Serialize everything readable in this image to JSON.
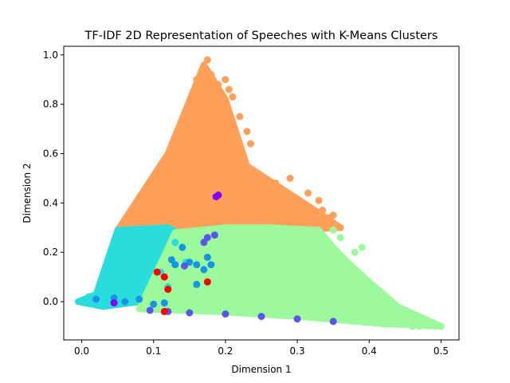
{
  "chart_data": {
    "type": "scatter",
    "title": "TF-IDF 2D Representation of Speeches with K-Means Clusters",
    "xlabel": "Dimension 1",
    "ylabel": "Dimension 2",
    "xlim": [
      -0.025,
      0.525
    ],
    "ylim": [
      -0.155,
      1.035
    ],
    "xticks": [
      0.0,
      0.1,
      0.2,
      0.3,
      0.4,
      0.5
    ],
    "xtick_labels": [
      "0.0",
      "0.1",
      "0.2",
      "0.3",
      "0.4",
      "0.5"
    ],
    "yticks": [
      0.0,
      0.2,
      0.4,
      0.6,
      0.8,
      1.0
    ],
    "ytick_labels": [
      "0.0",
      "0.2",
      "0.4",
      "0.6",
      "0.8",
      "1.0"
    ],
    "grid": false,
    "legend": "none",
    "colormap": "rainbow",
    "series": [
      {
        "color": "#ffa05a",
        "region": [
          [
            0.05,
            0.29
          ],
          [
            0.12,
            0.6
          ],
          [
            0.17,
            0.96
          ],
          [
            0.2,
            0.82
          ],
          [
            0.23,
            0.55
          ],
          [
            0.33,
            0.36
          ],
          [
            0.36,
            0.3
          ],
          [
            0.3,
            0.29
          ],
          [
            0.2,
            0.27
          ],
          [
            0.12,
            0.29
          ]
        ],
        "points": [
          [
            0.175,
            0.98
          ],
          [
            0.18,
            0.92
          ],
          [
            0.19,
            0.88
          ],
          [
            0.2,
            0.9
          ],
          [
            0.205,
            0.86
          ],
          [
            0.21,
            0.83
          ],
          [
            0.2,
            0.8
          ],
          [
            0.22,
            0.75
          ],
          [
            0.23,
            0.69
          ],
          [
            0.21,
            0.7
          ],
          [
            0.215,
            0.64
          ],
          [
            0.235,
            0.64
          ],
          [
            0.22,
            0.61
          ],
          [
            0.23,
            0.5
          ],
          [
            0.25,
            0.46
          ],
          [
            0.27,
            0.48
          ],
          [
            0.29,
            0.5
          ],
          [
            0.24,
            0.42
          ],
          [
            0.26,
            0.4
          ],
          [
            0.3,
            0.41
          ],
          [
            0.32,
            0.37
          ],
          [
            0.33,
            0.41
          ],
          [
            0.345,
            0.34
          ],
          [
            0.36,
            0.3
          ],
          [
            0.315,
            0.44
          ],
          [
            0.335,
            0.37
          ],
          [
            0.35,
            0.35
          ],
          [
            0.28,
            0.38
          ],
          [
            0.31,
            0.34
          ],
          [
            0.16,
            0.9
          ],
          [
            0.155,
            0.83
          ]
        ]
      },
      {
        "color": "#2adddd",
        "region": [
          [
            -0.005,
            0.0
          ],
          [
            0.02,
            0.03
          ],
          [
            0.05,
            0.29
          ],
          [
            0.12,
            0.3
          ],
          [
            0.14,
            0.27
          ],
          [
            0.12,
            0.1
          ],
          [
            0.1,
            0.03
          ],
          [
            0.08,
            0.0
          ],
          [
            0.03,
            -0.02
          ]
        ],
        "points": [
          [
            0.01,
            0.02
          ],
          [
            0.03,
            0.05
          ],
          [
            0.06,
            0.13
          ],
          [
            0.07,
            0.18
          ],
          [
            0.09,
            0.25
          ],
          [
            0.11,
            0.12
          ],
          [
            0.12,
            0.06
          ],
          [
            0.13,
            0.24
          ],
          [
            0.145,
            0.16
          ]
        ]
      },
      {
        "color": "#9cfa9c",
        "region": [
          [
            0.08,
            -0.03
          ],
          [
            0.13,
            0.28
          ],
          [
            0.2,
            0.3
          ],
          [
            0.26,
            0.3
          ],
          [
            0.33,
            0.29
          ],
          [
            0.35,
            0.22
          ],
          [
            0.37,
            0.16
          ],
          [
            0.4,
            0.08
          ],
          [
            0.44,
            -0.02
          ],
          [
            0.5,
            -0.1
          ],
          [
            0.42,
            -0.09
          ],
          [
            0.3,
            -0.06
          ],
          [
            0.18,
            -0.04
          ]
        ],
        "points": [
          [
            0.5,
            -0.1
          ],
          [
            0.47,
            -0.1
          ],
          [
            0.46,
            -0.1
          ],
          [
            0.45,
            -0.09
          ],
          [
            0.42,
            -0.07
          ],
          [
            0.4,
            -0.05
          ],
          [
            0.38,
            -0.04
          ],
          [
            0.37,
            0.07
          ],
          [
            0.38,
            0.2
          ],
          [
            0.39,
            0.22
          ],
          [
            0.36,
            0.26
          ],
          [
            0.35,
            0.29
          ],
          [
            0.33,
            0.14
          ],
          [
            0.35,
            0.1
          ],
          [
            0.37,
            0.0
          ],
          [
            0.41,
            -0.02
          ],
          [
            0.43,
            -0.01
          ],
          [
            0.3,
            0.02
          ],
          [
            0.25,
            0.12
          ],
          [
            0.28,
            0.25
          ],
          [
            0.22,
            0.05
          ],
          [
            0.18,
            0.18
          ],
          [
            0.15,
            0.06
          ],
          [
            0.2,
            -0.02
          ],
          [
            0.32,
            -0.03
          ]
        ]
      },
      {
        "color": "#1596e5",
        "points": [
          [
            0.02,
            0.01
          ],
          [
            0.045,
            0.015
          ],
          [
            0.06,
            0.0
          ],
          [
            0.08,
            0.01
          ],
          [
            0.1,
            -0.01
          ],
          [
            0.115,
            -0.005
          ],
          [
            0.16,
            0.07
          ],
          [
            0.14,
            0.22
          ],
          [
            0.15,
            0.16
          ],
          [
            0.16,
            0.15
          ],
          [
            0.17,
            0.13
          ],
          [
            0.175,
            0.18
          ],
          [
            0.18,
            0.15
          ],
          [
            0.125,
            0.17
          ],
          [
            0.13,
            0.15
          ]
        ]
      },
      {
        "color": "#5b55ec",
        "points": [
          [
            0.095,
            -0.035
          ],
          [
            0.12,
            -0.04
          ],
          [
            0.15,
            -0.045
          ],
          [
            0.2,
            -0.05
          ],
          [
            0.25,
            -0.06
          ],
          [
            0.3,
            -0.07
          ],
          [
            0.35,
            -0.08
          ],
          [
            0.17,
            0.24
          ],
          [
            0.175,
            0.26
          ],
          [
            0.185,
            0.27
          ],
          [
            0.143,
            0.145
          ]
        ]
      },
      {
        "color": "#8000ff",
        "points": [
          [
            0.045,
            -0.005
          ],
          [
            0.187,
            0.425
          ],
          [
            0.19,
            0.432
          ]
        ]
      },
      {
        "color": "#ff0000",
        "points": [
          [
            0.105,
            0.12
          ],
          [
            0.115,
            0.1
          ],
          [
            0.175,
            0.08
          ],
          [
            0.115,
            -0.04
          ],
          [
            0.12,
            0.05
          ]
        ]
      }
    ]
  }
}
